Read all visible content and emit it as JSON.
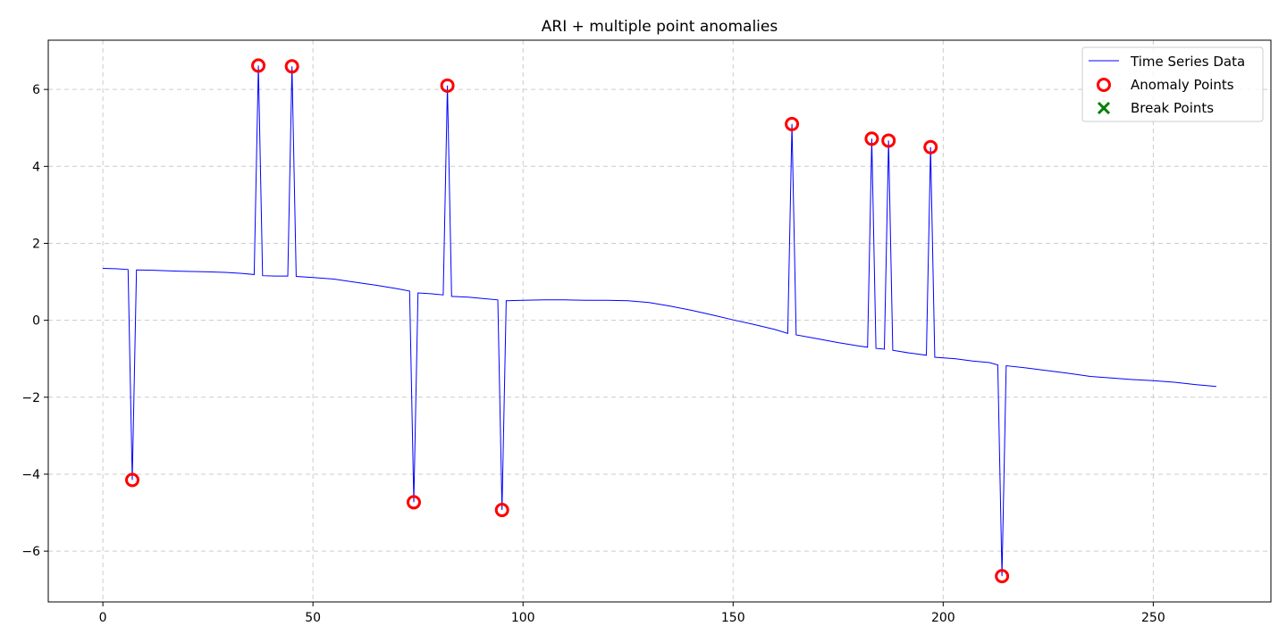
{
  "chart_data": {
    "type": "line",
    "title": "ARI + multiple point anomalies",
    "xlabel": "",
    "ylabel": "",
    "xlim": [
      -13,
      278
    ],
    "ylim": [
      -7.32,
      7.28
    ],
    "x_ticks": [
      0,
      50,
      100,
      150,
      200,
      250
    ],
    "y_ticks": [
      -6,
      -4,
      -2,
      0,
      2,
      4,
      6
    ],
    "x_tick_labels": [
      "0",
      "50",
      "100",
      "150",
      "200",
      "250"
    ],
    "y_tick_labels": [
      "−6",
      "−4",
      "−2",
      "0",
      "2",
      "4",
      "6"
    ],
    "grid": true,
    "legend_position": "top-right",
    "colors": {
      "line": "#0000ff",
      "anomaly": "#ff0000",
      "break": "#008000",
      "grid": "#cccccc"
    },
    "series": [
      {
        "name": "Time Series Data",
        "kind": "line",
        "points": [
          [
            0,
            1.35
          ],
          [
            3,
            1.34
          ],
          [
            6,
            1.32
          ],
          [
            7,
            -4.15
          ],
          [
            8,
            1.31
          ],
          [
            12,
            1.3
          ],
          [
            17,
            1.28
          ],
          [
            20,
            1.27
          ],
          [
            25,
            1.26
          ],
          [
            30,
            1.24
          ],
          [
            33,
            1.22
          ],
          [
            36,
            1.19
          ],
          [
            37,
            6.62
          ],
          [
            38,
            1.16
          ],
          [
            41,
            1.15
          ],
          [
            44,
            1.15
          ],
          [
            45,
            6.6
          ],
          [
            46,
            1.14
          ],
          [
            50,
            1.11
          ],
          [
            55,
            1.07
          ],
          [
            60,
            0.99
          ],
          [
            65,
            0.91
          ],
          [
            70,
            0.82
          ],
          [
            73,
            0.76
          ],
          [
            74,
            -4.73
          ],
          [
            75,
            0.71
          ],
          [
            78,
            0.69
          ],
          [
            81,
            0.66
          ],
          [
            82,
            6.1
          ],
          [
            83,
            0.62
          ],
          [
            87,
            0.6
          ],
          [
            91,
            0.56
          ],
          [
            94,
            0.53
          ],
          [
            95,
            -4.93
          ],
          [
            96,
            0.51
          ],
          [
            100,
            0.52
          ],
          [
            105,
            0.53
          ],
          [
            110,
            0.53
          ],
          [
            115,
            0.52
          ],
          [
            120,
            0.52
          ],
          [
            125,
            0.51
          ],
          [
            130,
            0.46
          ],
          [
            135,
            0.37
          ],
          [
            140,
            0.26
          ],
          [
            145,
            0.14
          ],
          [
            150,
            0.01
          ],
          [
            155,
            -0.11
          ],
          [
            160,
            -0.24
          ],
          [
            163,
            -0.34
          ],
          [
            164,
            5.1
          ],
          [
            165,
            -0.38
          ],
          [
            170,
            -0.48
          ],
          [
            175,
            -0.58
          ],
          [
            180,
            -0.67
          ],
          [
            182,
            -0.7
          ],
          [
            183,
            4.72
          ],
          [
            184,
            -0.73
          ],
          [
            186,
            -0.75
          ],
          [
            187,
            4.67
          ],
          [
            188,
            -0.78
          ],
          [
            192,
            -0.85
          ],
          [
            196,
            -0.91
          ],
          [
            197,
            4.5
          ],
          [
            198,
            -0.96
          ],
          [
            203,
            -1.0
          ],
          [
            207,
            -1.06
          ],
          [
            211,
            -1.1
          ],
          [
            213,
            -1.16
          ],
          [
            214,
            -6.65
          ],
          [
            215,
            -1.18
          ],
          [
            220,
            -1.24
          ],
          [
            225,
            -1.31
          ],
          [
            230,
            -1.38
          ],
          [
            235,
            -1.46
          ],
          [
            240,
            -1.5
          ],
          [
            245,
            -1.54
          ],
          [
            250,
            -1.57
          ],
          [
            255,
            -1.61
          ],
          [
            260,
            -1.67
          ],
          [
            265,
            -1.72
          ]
        ]
      },
      {
        "name": "Anomaly Points",
        "kind": "scatter",
        "marker": "circle-open",
        "points": [
          [
            7,
            -4.15
          ],
          [
            37,
            6.62
          ],
          [
            45,
            6.6
          ],
          [
            74,
            -4.73
          ],
          [
            82,
            6.1
          ],
          [
            95,
            -4.93
          ],
          [
            164,
            5.1
          ],
          [
            183,
            4.72
          ],
          [
            187,
            4.67
          ],
          [
            197,
            4.5
          ],
          [
            214,
            -6.65
          ]
        ]
      },
      {
        "name": "Break Points",
        "kind": "scatter",
        "marker": "x",
        "points": []
      }
    ]
  }
}
